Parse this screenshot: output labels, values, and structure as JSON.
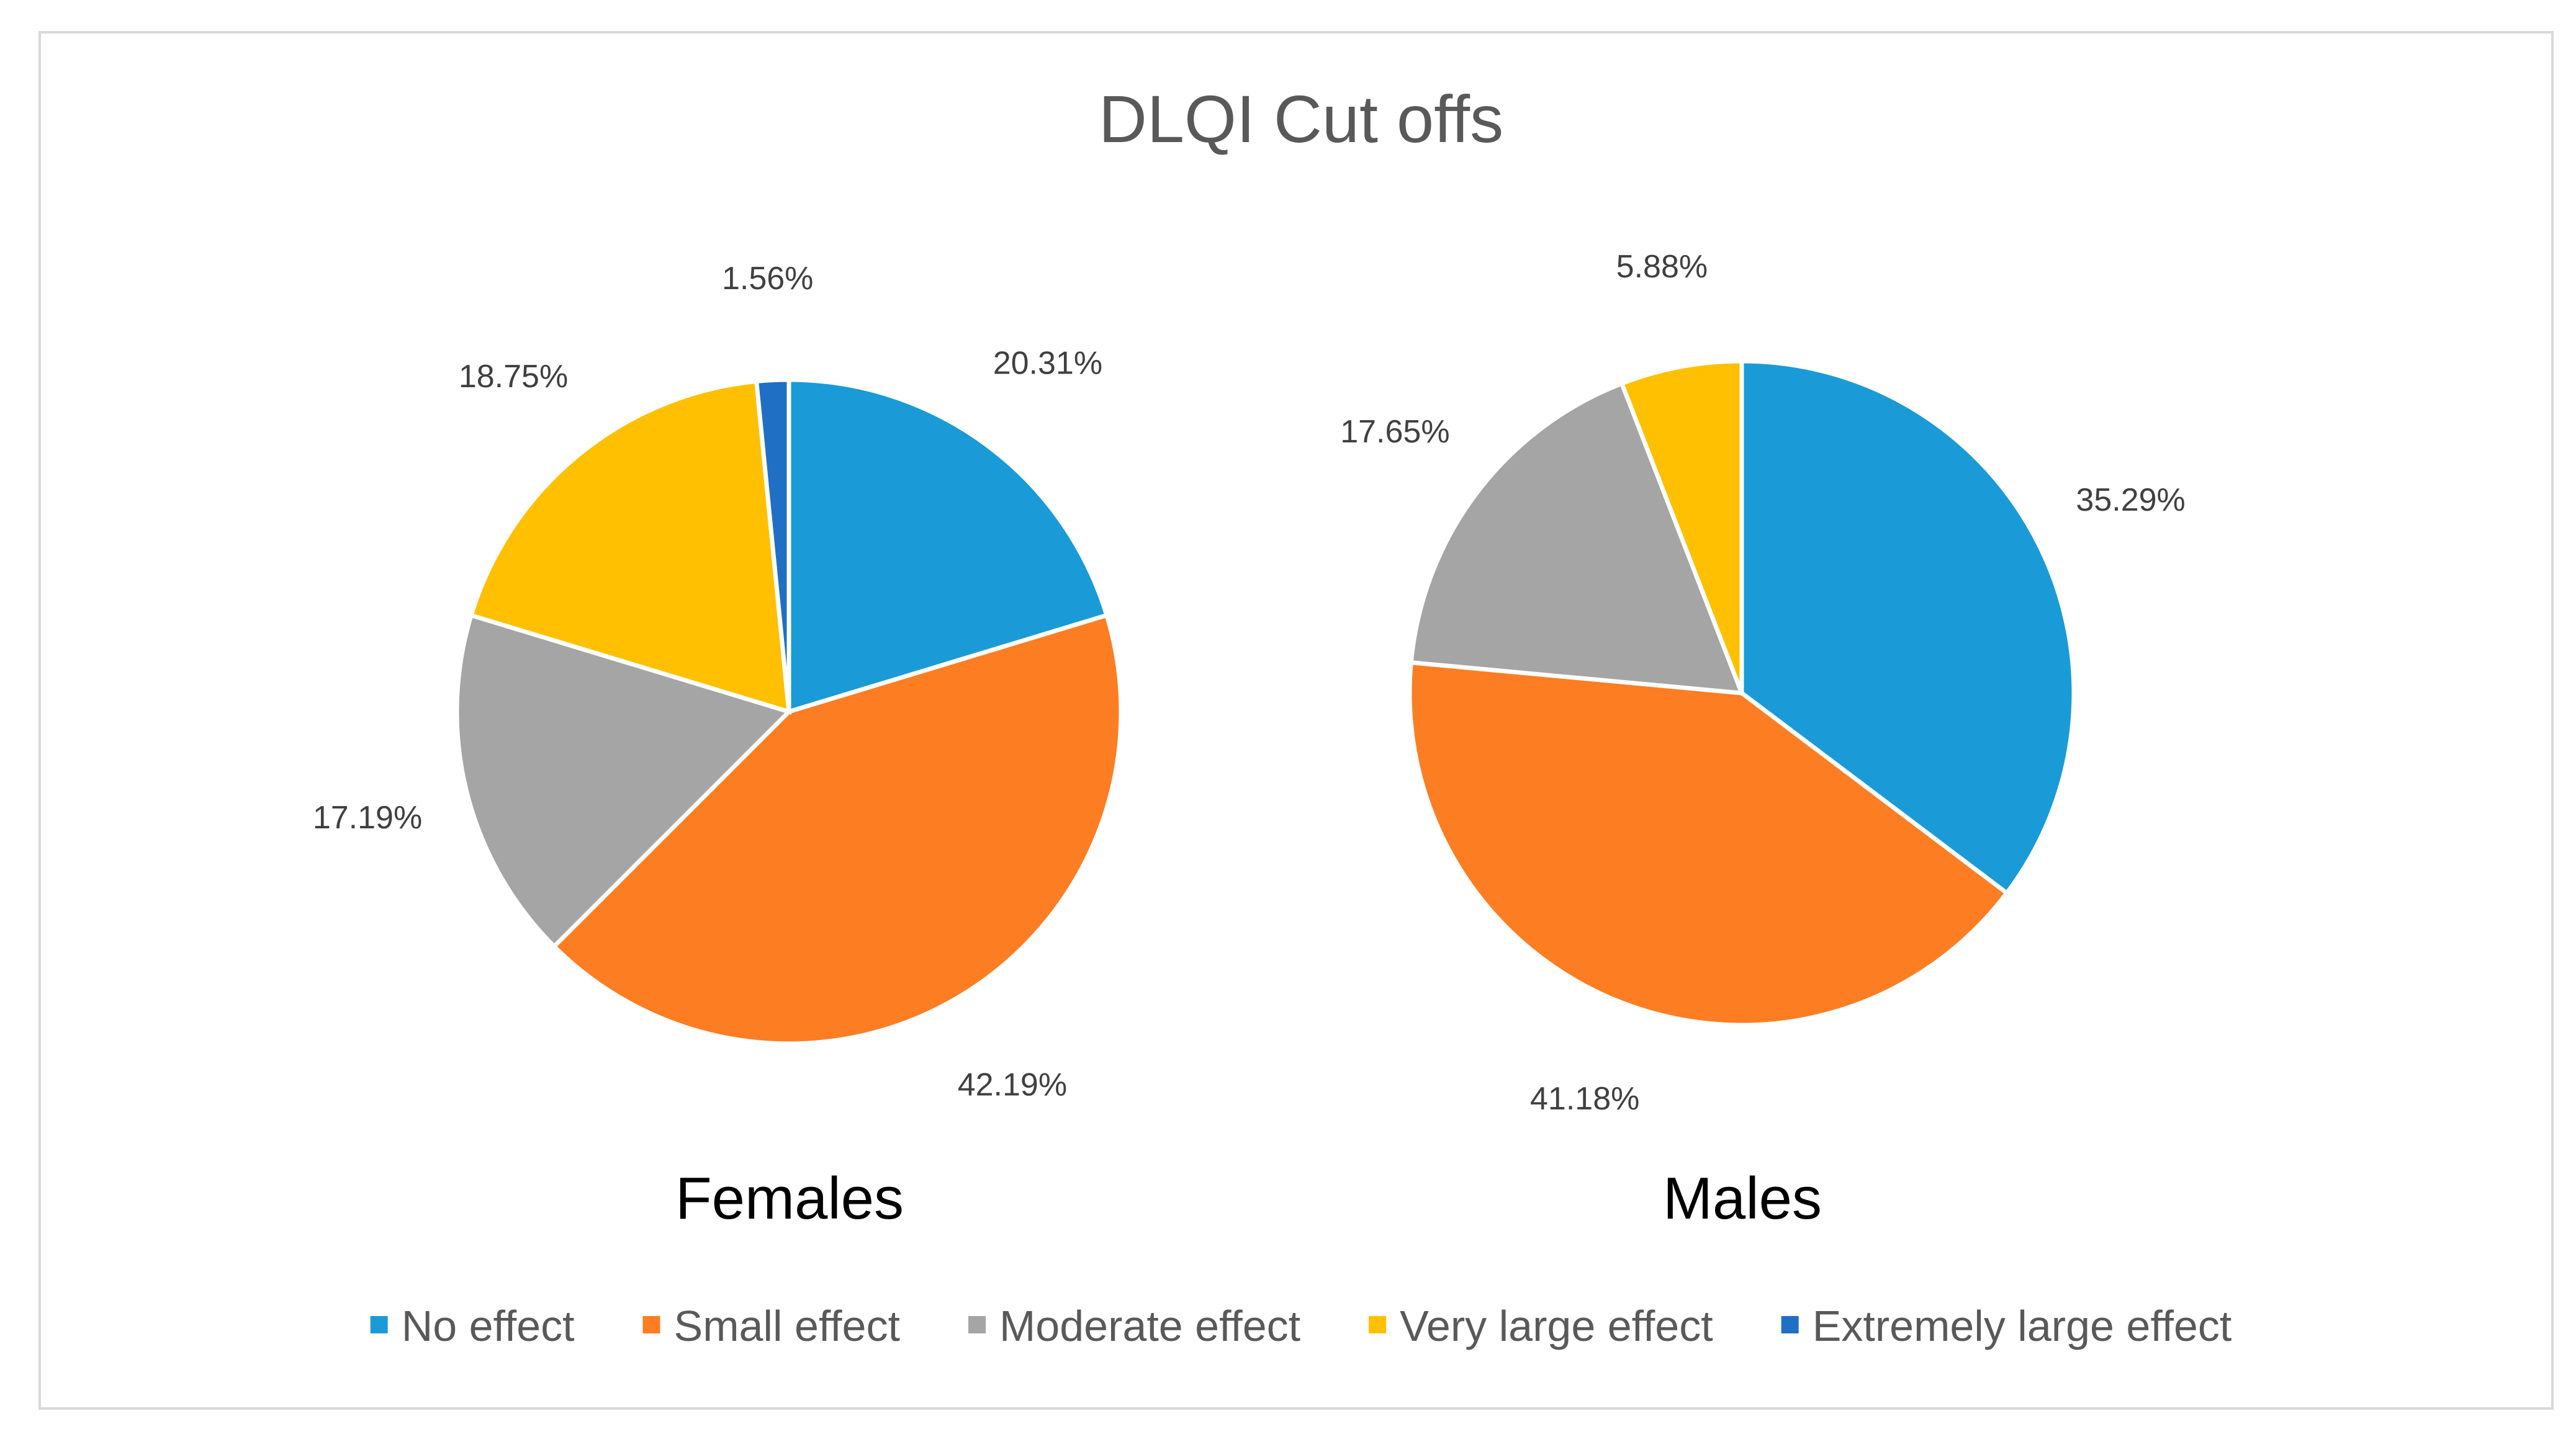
{
  "chart_data": {
    "type": "pie",
    "title": "DLQI Cut offs",
    "categories": [
      "No effect",
      "Small effect",
      "Moderate effect",
      "Very large effect",
      "Extremely large effect"
    ],
    "colors": [
      "#1a9bd7",
      "#fd7d22",
      "#a5a5a5",
      "#fec000",
      "#1f6fc5"
    ],
    "series": [
      {
        "name": "Females",
        "values": [
          20.31,
          42.19,
          17.19,
          18.75,
          1.56
        ],
        "labels": [
          "20.31%",
          "42.19%",
          "17.19%",
          "18.75%",
          "1.56%"
        ]
      },
      {
        "name": "Males",
        "values": [
          35.29,
          41.18,
          17.65,
          5.88,
          0
        ],
        "labels": [
          "35.29%",
          "41.18%",
          "17.65%",
          "5.88%",
          ""
        ]
      }
    ],
    "legend": "bottom"
  }
}
